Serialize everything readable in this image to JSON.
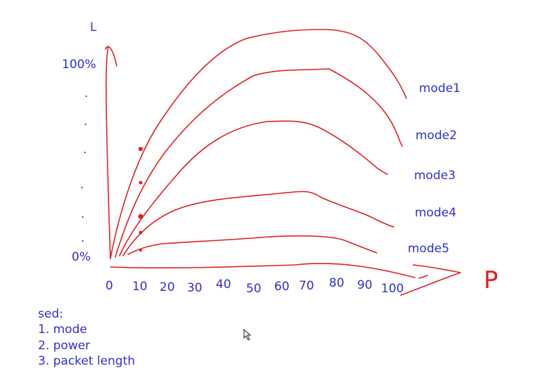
{
  "y_axis": {
    "label": "L",
    "top_label": "100%",
    "bottom_label": "0%",
    "dots": [
      ".",
      ".",
      ".",
      ".",
      ".",
      "."
    ]
  },
  "x_axis": {
    "label": "P",
    "ticks": [
      "0",
      "10",
      "20",
      "30",
      "40",
      "50",
      "60",
      "70",
      "80",
      "90",
      "100"
    ]
  },
  "curves": [
    {
      "label": "mode1"
    },
    {
      "label": "mode2"
    },
    {
      "label": "mode3"
    },
    {
      "label": "mode4"
    },
    {
      "label": "mode5"
    }
  ],
  "notes": {
    "heading": "sed:",
    "items": [
      "1. mode",
      "2. power",
      "3. packet length"
    ]
  },
  "colors": {
    "ink": "#e02020",
    "text": "#2f2fd0"
  },
  "cursor_icon": "mouse-pointer-icon"
}
